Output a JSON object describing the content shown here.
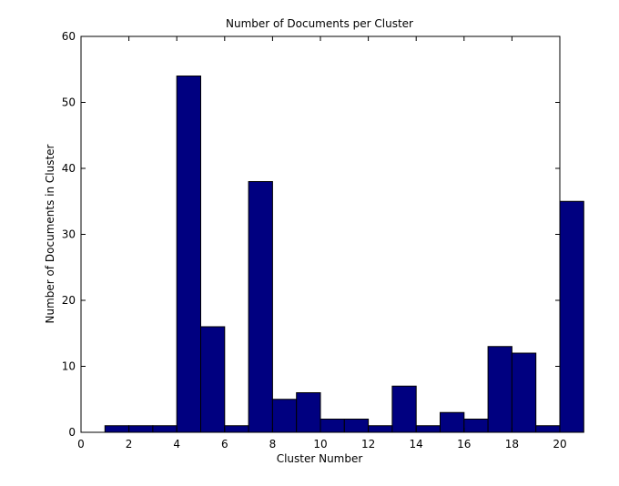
{
  "chart_data": {
    "type": "bar",
    "title": "Number of Documents per Cluster",
    "xlabel": "Cluster Number",
    "ylabel": "Number of Documents in Cluster",
    "xlim": [
      0,
      20
    ],
    "ylim": [
      0,
      60
    ],
    "xticks": [
      "0",
      "2",
      "4",
      "6",
      "8",
      "10",
      "12",
      "14",
      "16",
      "18",
      "20"
    ],
    "yticks": [
      "0",
      "10",
      "20",
      "30",
      "40",
      "50",
      "60"
    ],
    "categories": [
      1,
      2,
      3,
      4,
      5,
      6,
      7,
      8,
      9,
      10,
      11,
      12,
      13,
      14,
      15,
      16,
      17,
      18,
      19,
      20
    ],
    "values": [
      1,
      1,
      1,
      54,
      16,
      1,
      38,
      5,
      6,
      2,
      2,
      1,
      7,
      1,
      3,
      2,
      13,
      12,
      1,
      35
    ],
    "bar_color": "#000080",
    "grid": false,
    "legend": false
  }
}
